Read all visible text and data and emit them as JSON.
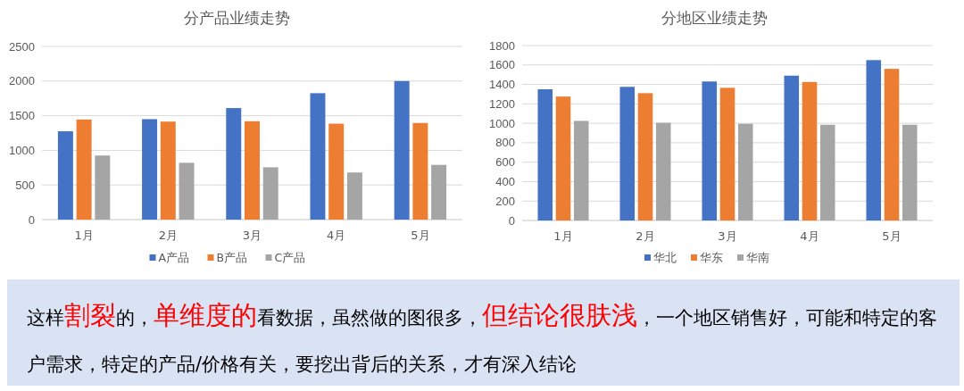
{
  "chart_data": [
    {
      "type": "bar",
      "title": "分产品业绩走势",
      "categories": [
        "1月",
        "2月",
        "3月",
        "4月",
        "5月"
      ],
      "series": [
        {
          "name": "A产品",
          "color": "#4472c4",
          "values": [
            1275,
            1450,
            1610,
            1825,
            2000
          ]
        },
        {
          "name": "B产品",
          "color": "#ed7d31",
          "values": [
            1445,
            1415,
            1420,
            1385,
            1395
          ]
        },
        {
          "name": "C产品",
          "color": "#a5a5a5",
          "values": [
            925,
            820,
            755,
            680,
            790
          ]
        }
      ],
      "ylim": [
        0,
        2500
      ],
      "yticks": [
        0,
        500,
        1000,
        1500,
        2000,
        2500
      ],
      "grid": "y",
      "legend": "bottom"
    },
    {
      "type": "bar",
      "title": "分地区业绩走势",
      "categories": [
        "1月",
        "2月",
        "3月",
        "4月",
        "5月"
      ],
      "series": [
        {
          "name": "华北",
          "color": "#4472c4",
          "values": [
            1350,
            1375,
            1430,
            1490,
            1650
          ]
        },
        {
          "name": "华东",
          "color": "#ed7d31",
          "values": [
            1275,
            1310,
            1365,
            1425,
            1560
          ]
        },
        {
          "name": "华南",
          "color": "#a5a5a5",
          "values": [
            1025,
            1005,
            995,
            985,
            985
          ]
        }
      ],
      "ylim": [
        0,
        1800
      ],
      "yticks": [
        0,
        200,
        400,
        600,
        800,
        1000,
        1200,
        1400,
        1600,
        1800
      ],
      "grid": "y",
      "legend": "bottom"
    },
    {
      "type": "other",
      "annotations": [
        "这样",
        "割裂",
        "的，",
        "单维度的",
        "看数据，虽然做的图很多，",
        "但结论很肤浅",
        "，一个地区销售好，可能和特定的客户需求，特定的产品/价格有关，要挖出背后的关系，才有深入结论"
      ]
    }
  ]
}
